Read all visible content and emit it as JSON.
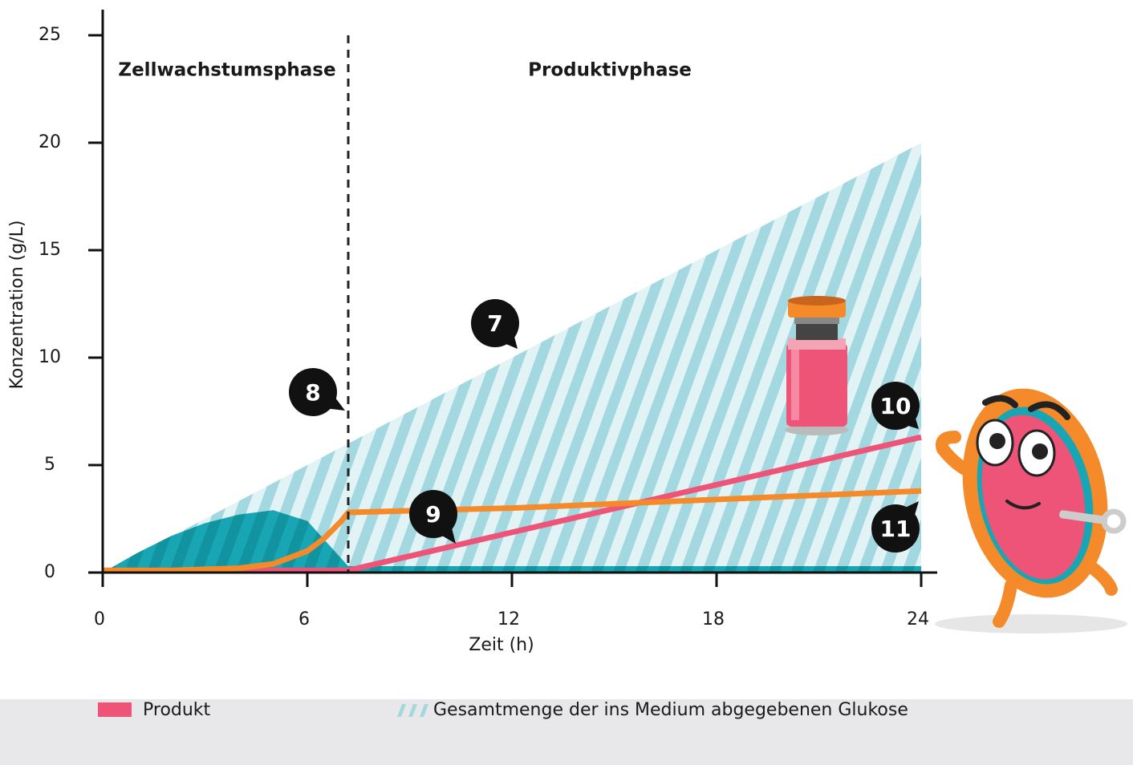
{
  "chart_data": {
    "type": "line",
    "xlabel": "Zeit (h)",
    "ylabel": "Konzentration (g/L)",
    "xlim": [
      0,
      24
    ],
    "ylim": [
      0,
      25
    ],
    "xticks": [
      0,
      6,
      12,
      18,
      24
    ],
    "yticks": [
      0,
      5,
      10,
      15,
      20,
      25
    ],
    "phase_boundary": 7.2,
    "phases": [
      "Zellwachstumsphase",
      "Produktivphase"
    ],
    "annotations": [
      "7",
      "8",
      "9",
      "10",
      "11"
    ],
    "series": [
      {
        "name": "Produkt",
        "color": "#ee5478",
        "fill": false,
        "x": [
          0,
          7.2,
          24
        ],
        "values": [
          0.1,
          0.1,
          6.3
        ]
      },
      {
        "name": "Gesamtmenge der ins Medium abgegebenen Glukose",
        "color": "#a3d8e1",
        "fill": true,
        "x": [
          0,
          24
        ],
        "values": [
          0,
          20
        ]
      },
      {
        "color": "#18a6b4",
        "fill": true,
        "x": [
          0,
          1,
          2,
          3,
          4,
          5,
          6,
          6.8,
          7.2,
          24
        ],
        "values": [
          0,
          0.9,
          1.7,
          2.3,
          2.7,
          2.9,
          2.4,
          1.0,
          0.3,
          0.3
        ]
      },
      {
        "color": "#f58a2b",
        "fill": false,
        "x": [
          0,
          2,
          4,
          5,
          6,
          6.5,
          7,
          7.2,
          12,
          18,
          24
        ],
        "values": [
          0.1,
          0.1,
          0.2,
          0.4,
          1.0,
          1.6,
          2.4,
          2.8,
          3.0,
          3.4,
          3.8
        ]
      }
    ]
  }
}
